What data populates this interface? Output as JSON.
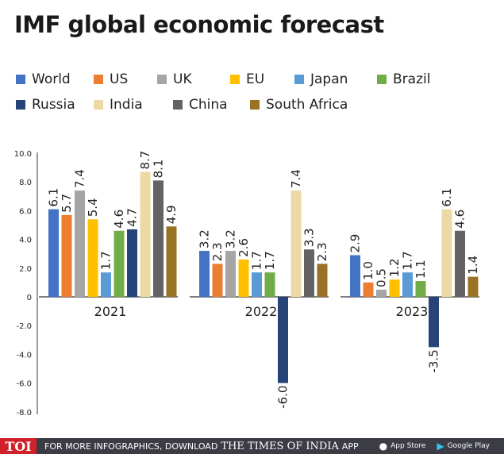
{
  "title": "IMF global economic forecast",
  "chart_data": {
    "type": "bar",
    "title": "IMF global economic forecast",
    "categories": [
      "2021",
      "2022",
      "2023"
    ],
    "ylim": [
      -8,
      10
    ],
    "yticks": [
      "10.0",
      "8.0",
      "6.0",
      "4.0",
      "2.0",
      "0",
      "-2.0",
      "-4.0",
      "-6.0",
      "-8.0"
    ],
    "ytick_values": [
      10,
      8,
      6,
      4,
      2,
      0,
      -2,
      -4,
      -6,
      -8
    ],
    "legend": "top",
    "grid": false,
    "series": [
      {
        "name": "World",
        "color": "#4472c4",
        "values": [
          6.1,
          3.2,
          2.9
        ],
        "labels": [
          "6.1",
          "3.2",
          "2.9"
        ]
      },
      {
        "name": "US",
        "color": "#ed7d31",
        "values": [
          5.7,
          2.3,
          1.0
        ],
        "labels": [
          "5.7",
          "2.3",
          "1.0"
        ]
      },
      {
        "name": "UK",
        "color": "#a5a5a5",
        "values": [
          7.4,
          3.2,
          0.5
        ],
        "labels": [
          "7.4",
          "3.2",
          "0.5"
        ]
      },
      {
        "name": "EU",
        "color": "#ffc000",
        "values": [
          5.4,
          2.6,
          1.2
        ],
        "labels": [
          "5.4",
          "2.6",
          "1.2"
        ]
      },
      {
        "name": "Japan",
        "color": "#5b9bd5",
        "values": [
          1.7,
          1.7,
          1.7
        ],
        "labels": [
          "1.7",
          "1.7",
          "1.7"
        ]
      },
      {
        "name": "Brazil",
        "color": "#70ad47",
        "values": [
          4.6,
          1.7,
          1.1
        ],
        "labels": [
          "4.6",
          "1.7",
          "1.1"
        ]
      },
      {
        "name": "Russia",
        "color": "#264478",
        "values": [
          4.7,
          -6.0,
          -3.5
        ],
        "labels": [
          "4.7",
          "-6.0",
          "-3.5"
        ]
      },
      {
        "name": "India",
        "color": "#ecd9a4",
        "values": [
          8.7,
          7.4,
          6.1
        ],
        "labels": [
          "8.7",
          "7.4",
          "6.1"
        ]
      },
      {
        "name": "China",
        "color": "#636363",
        "values": [
          8.1,
          3.3,
          4.6
        ],
        "labels": [
          "8.1",
          "3.3",
          "4.6"
        ]
      },
      {
        "name": "South Africa",
        "color": "#997325",
        "values": [
          4.9,
          2.3,
          1.4
        ],
        "labels": [
          "4.9",
          "2.3",
          "1.4"
        ]
      }
    ]
  },
  "footer": {
    "logo": "TOI",
    "text": "FOR MORE INFOGRAPHICS, DOWNLOAD",
    "brand": "THE TIMES OF INDIA",
    "app": "APP",
    "app_store": "App Store",
    "google_play": "Google Play"
  }
}
